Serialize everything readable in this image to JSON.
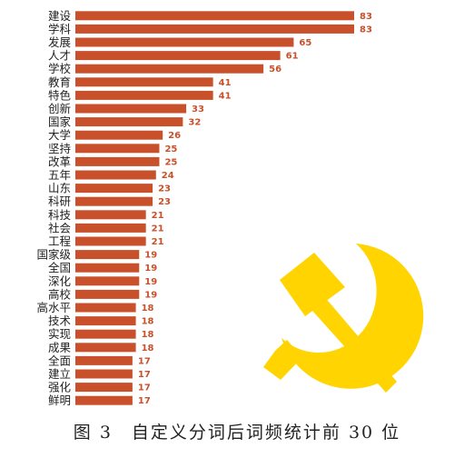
{
  "caption": "图 3　自定义分词后词频统计前 30 位",
  "colors": {
    "bar": "#c8512b",
    "emblem": "#ffd400",
    "text": "#222222"
  },
  "emblem_icon": "hammer-and-sickle-icon",
  "chart_data": {
    "type": "bar",
    "orientation": "horizontal",
    "title": "",
    "xlabel": "",
    "ylabel": "",
    "xlim": [
      0,
      83
    ],
    "grid": false,
    "categories": [
      "建设",
      "学科",
      "发展",
      "人才",
      "学校",
      "教育",
      "特色",
      "创新",
      "国家",
      "大学",
      "坚持",
      "改革",
      "五年",
      "山东",
      "科研",
      "科技",
      "社会",
      "工程",
      "国家级",
      "全国",
      "深化",
      "高校",
      "高水平",
      "技术",
      "实现",
      "成果",
      "全面",
      "建立",
      "强化",
      "鲜明"
    ],
    "values": [
      83,
      83,
      65,
      61,
      56,
      41,
      41,
      33,
      32,
      26,
      25,
      25,
      24,
      23,
      23,
      21,
      21,
      21,
      19,
      19,
      19,
      19,
      18,
      18,
      18,
      18,
      17,
      17,
      17,
      17
    ]
  }
}
